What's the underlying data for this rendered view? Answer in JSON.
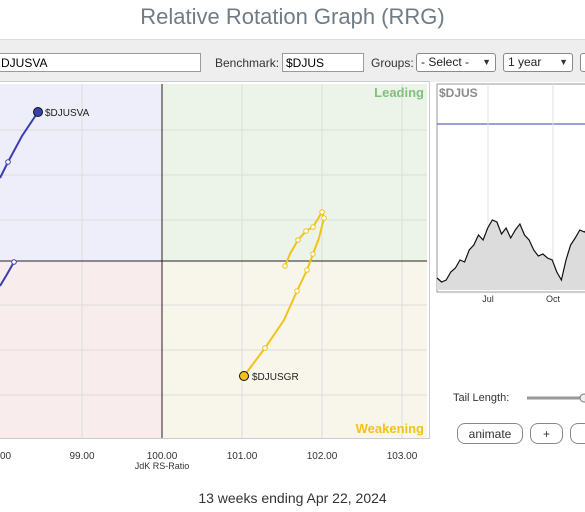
{
  "page_title": "Relative Rotation Graph (RRG)",
  "controls": {
    "symbols_value": "DJUSVA",
    "benchmark_label": "Benchmark:",
    "benchmark_value": "$DJUS",
    "groups_label": "Groups:",
    "groups_value": "- Select -",
    "period_value": "1 year"
  },
  "rrg": {
    "quadrants": {
      "leading": "Leading",
      "weakening": "Weakening"
    },
    "x_ticks": [
      "00",
      "99.00",
      "100.00",
      "101.00",
      "102.00",
      "103.00"
    ],
    "x_axis_label": "JdK RS-Ratio",
    "series": [
      {
        "name": "$DJUSVA",
        "color": "#3a3fb0"
      },
      {
        "name": "$DJUSGR",
        "color": "#f2c21a"
      }
    ]
  },
  "mini_chart": {
    "symbol": "$DJUS",
    "x_ticks": [
      "Jul",
      "Oct"
    ],
    "values": [
      0.12,
      0.08,
      0.1,
      0.18,
      0.22,
      0.3,
      0.28,
      0.4,
      0.45,
      0.55,
      0.5,
      0.62,
      0.7,
      0.68,
      0.56,
      0.62,
      0.52,
      0.6,
      0.66,
      0.55,
      0.5,
      0.4,
      0.34,
      0.36,
      0.32,
      0.3,
      0.18,
      0.1,
      0.3,
      0.45,
      0.52,
      0.6,
      0.58,
      0.62
    ]
  },
  "tail": {
    "label": "Tail Length:"
  },
  "buttons": {
    "animate": "animate",
    "plus": "+"
  },
  "footer": "13 weeks ending Apr 22, 2024"
}
